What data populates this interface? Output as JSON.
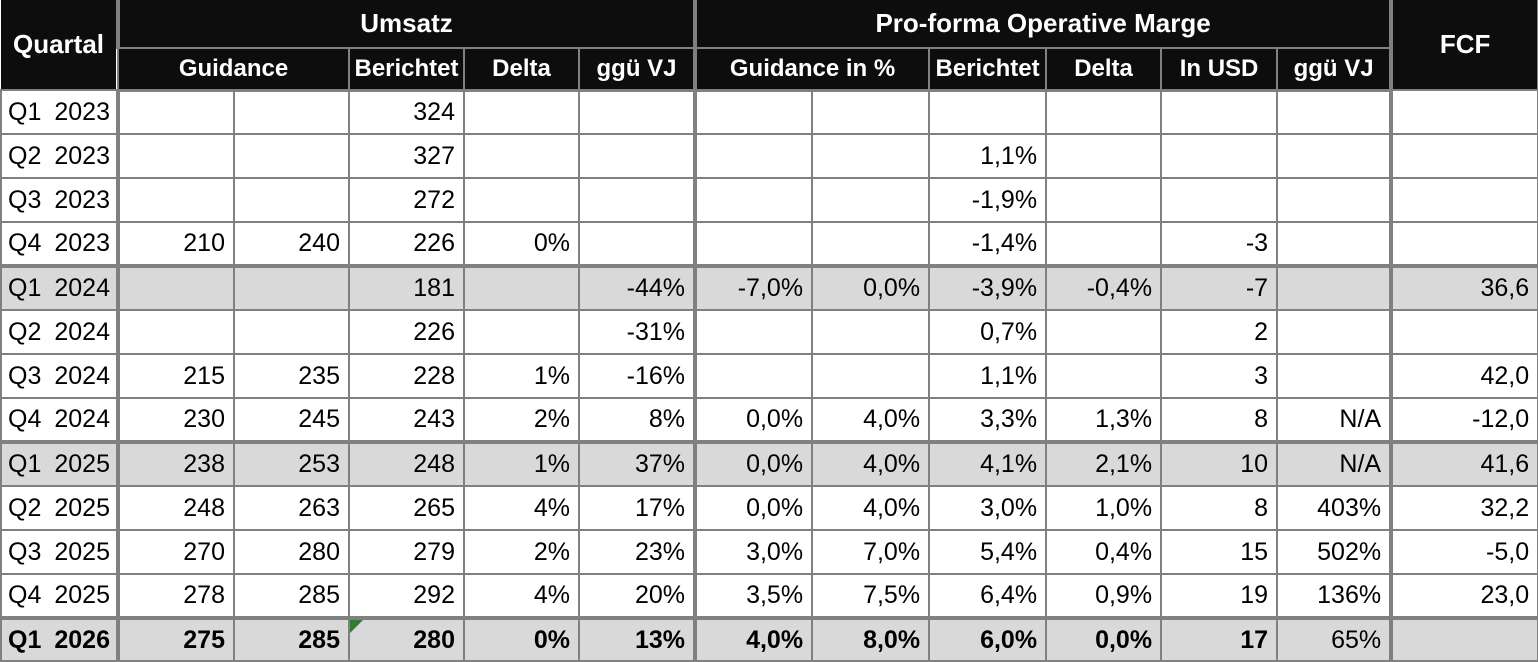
{
  "table": {
    "header": {
      "quartal": "Quartal",
      "umsatz": "Umsatz",
      "marge": "Pro-forma Operative Marge",
      "fcf": "FCF",
      "umsatz_guidance": "Guidance",
      "umsatz_berichtet": "Berichtet",
      "umsatz_delta": "Delta",
      "umsatz_ggue_vj": "ggü VJ",
      "marge_guidance": "Guidance in %",
      "marge_berichtet": "Berichtet",
      "marge_delta": "Delta",
      "marge_in_usd": "In USD",
      "marge_ggue_vj": "ggü VJ"
    },
    "column_keys": [
      "umsatz-guidance-low",
      "umsatz-guidance-high",
      "umsatz-berichtet",
      "umsatz-delta",
      "umsatz-ggue-vj",
      "marge-guidance-low",
      "marge-guidance-high",
      "marge-berichtet",
      "marge-delta",
      "marge-in-usd",
      "marge-ggue-vj",
      "fcf"
    ],
    "rows": [
      {
        "quarter": "Q1",
        "year": "2023",
        "shaded": false,
        "thick_top": false,
        "bold": false,
        "cells": [
          "",
          "",
          "324",
          "",
          "",
          "",
          "",
          "",
          "",
          "",
          "",
          ""
        ]
      },
      {
        "quarter": "Q2",
        "year": "2023",
        "shaded": false,
        "thick_top": false,
        "bold": false,
        "cells": [
          "",
          "",
          "327",
          "",
          "",
          "",
          "",
          "1,1%",
          "",
          "",
          "",
          ""
        ]
      },
      {
        "quarter": "Q3",
        "year": "2023",
        "shaded": false,
        "thick_top": false,
        "bold": false,
        "cells": [
          "",
          "",
          "272",
          "",
          "",
          "",
          "",
          "-1,9%",
          "",
          "",
          "",
          ""
        ]
      },
      {
        "quarter": "Q4",
        "year": "2023",
        "shaded": false,
        "thick_top": false,
        "bold": false,
        "cells": [
          "210",
          "240",
          "226",
          "0%",
          "",
          "",
          "",
          "-1,4%",
          "",
          "-3",
          "",
          ""
        ]
      },
      {
        "quarter": "Q1",
        "year": "2024",
        "shaded": true,
        "thick_top": true,
        "bold": false,
        "cells": [
          "",
          "",
          "181",
          "",
          "-44%",
          "-7,0%",
          "0,0%",
          "-3,9%",
          "-0,4%",
          "-7",
          "",
          "36,6"
        ]
      },
      {
        "quarter": "Q2",
        "year": "2024",
        "shaded": false,
        "thick_top": false,
        "bold": false,
        "cells": [
          "",
          "",
          "226",
          "",
          "-31%",
          "",
          "",
          "0,7%",
          "",
          "2",
          "",
          ""
        ]
      },
      {
        "quarter": "Q3",
        "year": "2024",
        "shaded": false,
        "thick_top": false,
        "bold": false,
        "cells": [
          "215",
          "235",
          "228",
          "1%",
          "-16%",
          "",
          "",
          "1,1%",
          "",
          "3",
          "",
          "42,0"
        ]
      },
      {
        "quarter": "Q4",
        "year": "2024",
        "shaded": false,
        "thick_top": false,
        "bold": false,
        "cells": [
          "230",
          "245",
          "243",
          "2%",
          "8%",
          "0,0%",
          "4,0%",
          "3,3%",
          "1,3%",
          "8",
          "N/A",
          "-12,0"
        ]
      },
      {
        "quarter": "Q1",
        "year": "2025",
        "shaded": true,
        "thick_top": true,
        "bold": false,
        "cells": [
          "238",
          "253",
          "248",
          "1%",
          "37%",
          "0,0%",
          "4,0%",
          "4,1%",
          "2,1%",
          "10",
          "N/A",
          "41,6"
        ]
      },
      {
        "quarter": "Q2",
        "year": "2025",
        "shaded": false,
        "thick_top": false,
        "bold": false,
        "cells": [
          "248",
          "263",
          "265",
          "4%",
          "17%",
          "0,0%",
          "4,0%",
          "3,0%",
          "1,0%",
          "8",
          "403%",
          "32,2"
        ]
      },
      {
        "quarter": "Q3",
        "year": "2025",
        "shaded": false,
        "thick_top": false,
        "bold": false,
        "cells": [
          "270",
          "280",
          "279",
          "2%",
          "23%",
          "3,0%",
          "7,0%",
          "5,4%",
          "0,4%",
          "15",
          "502%",
          "-5,0"
        ]
      },
      {
        "quarter": "Q4",
        "year": "2025",
        "shaded": false,
        "thick_top": false,
        "bold": false,
        "cells": [
          "278",
          "285",
          "292",
          "4%",
          "20%",
          "3,5%",
          "7,5%",
          "6,4%",
          "0,9%",
          "19",
          "136%",
          "23,0"
        ]
      },
      {
        "quarter": "Q1",
        "year": "2026",
        "shaded": true,
        "thick_top": true,
        "bold": true,
        "regular_cells": [
          10
        ],
        "marker_cell": 2,
        "cells": [
          "275",
          "285",
          "280",
          "0%",
          "13%",
          "4,0%",
          "8,0%",
          "6,0%",
          "0,0%",
          "17",
          "65%",
          ""
        ]
      }
    ],
    "marker": {
      "name": "green-corner-flag",
      "color": "#2e7d32"
    },
    "colors": {
      "header_bg": "#0d0d0d",
      "header_text": "#ffffff",
      "row_shade": "#d9d9d9",
      "border": "#808080",
      "text": "#000000",
      "flag_green": "#2e7d32"
    }
  }
}
